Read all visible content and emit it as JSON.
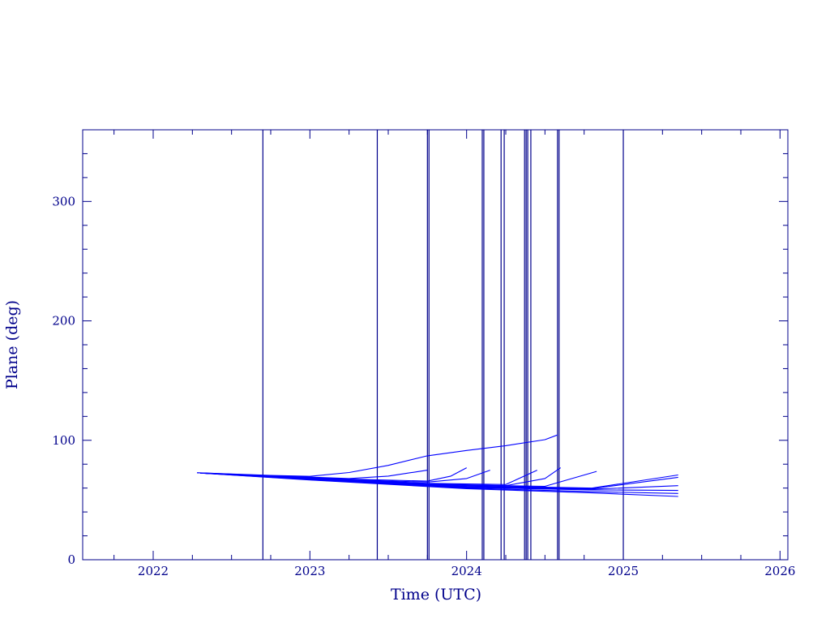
{
  "chart_data": {
    "type": "line",
    "title": "",
    "xlabel": "Time (UTC)",
    "ylabel": "Plane (deg)",
    "xlim": [
      2021.55,
      2026.05
    ],
    "ylim": [
      0,
      360
    ],
    "x_ticks": [
      2022,
      2023,
      2024,
      2025,
      2026
    ],
    "x_tick_labels": [
      "2022",
      "2023",
      "2024",
      "2025",
      "2026"
    ],
    "y_ticks": [
      0,
      100,
      200,
      300
    ],
    "y_tick_labels": [
      "0",
      "100",
      "200",
      "300"
    ],
    "grid": false,
    "colors": {
      "axis": "#00008b",
      "lines": "#0000ff",
      "markers": "#00008b"
    },
    "vertical_markers": [
      2022.7,
      2023.43,
      2023.75,
      2023.76,
      2024.1,
      2024.11,
      2024.22,
      2024.24,
      2024.37,
      2024.38,
      2024.39,
      2024.41,
      2024.58,
      2024.59,
      2025.0
    ],
    "series": [
      {
        "x": [
          2022.28,
          2022.5,
          2022.75,
          2023.0,
          2023.25,
          2023.5,
          2023.75,
          2024.0,
          2024.25,
          2024.5,
          2024.58
        ],
        "y": [
          72.8,
          71.8,
          70.6,
          69.8,
          73.0,
          79.0,
          87.0,
          91.5,
          95.5,
          100.5,
          104.5
        ]
      },
      {
        "x": [
          2022.28,
          2022.75,
          2023.25,
          2023.5,
          2023.75
        ],
        "y": [
          72.8,
          70.4,
          68.0,
          70.0,
          75.0
        ]
      },
      {
        "x": [
          2022.3,
          2022.75,
          2023.25,
          2023.75,
          2023.9,
          2024.0
        ],
        "y": [
          72.5,
          70.2,
          67.5,
          65.8,
          70.0,
          77.0
        ]
      },
      {
        "x": [
          2022.3,
          2022.75,
          2023.25,
          2023.75,
          2024.0,
          2024.15
        ],
        "y": [
          72.5,
          70.0,
          67.0,
          65.0,
          68.0,
          75.0
        ]
      },
      {
        "x": [
          2022.3,
          2023.0,
          2023.75,
          2024.25,
          2024.45
        ],
        "y": [
          72.6,
          68.5,
          64.0,
          63.0,
          75.0
        ]
      },
      {
        "x": [
          2022.3,
          2023.0,
          2023.75,
          2024.25,
          2024.5,
          2024.6
        ],
        "y": [
          72.6,
          68.2,
          63.5,
          62.0,
          68.0,
          77.0
        ]
      },
      {
        "x": [
          2022.3,
          2023.0,
          2023.75,
          2024.5,
          2024.83
        ],
        "y": [
          72.6,
          68.0,
          63.0,
          61.5,
          74.0
        ]
      },
      {
        "x": [
          2022.3,
          2023.0,
          2024.0,
          2024.8,
          2025.35
        ],
        "y": [
          72.6,
          68.0,
          62.0,
          60.0,
          71.0
        ]
      },
      {
        "x": [
          2022.3,
          2023.0,
          2024.0,
          2024.8,
          2025.35
        ],
        "y": [
          72.6,
          67.8,
          61.5,
          59.5,
          69.0
        ]
      },
      {
        "x": [
          2022.3,
          2023.0,
          2024.0,
          2024.8,
          2025.35
        ],
        "y": [
          72.6,
          67.5,
          61.0,
          59.0,
          62.0
        ]
      },
      {
        "x": [
          2022.3,
          2023.0,
          2024.0,
          2024.8,
          2025.35
        ],
        "y": [
          72.6,
          67.3,
          60.5,
          58.5,
          58.0
        ]
      },
      {
        "x": [
          2022.3,
          2023.0,
          2024.0,
          2024.8,
          2025.35
        ],
        "y": [
          72.6,
          67.0,
          60.0,
          57.0,
          55.5
        ]
      },
      {
        "x": [
          2022.3,
          2023.0,
          2024.0,
          2024.8,
          2025.35
        ],
        "y": [
          72.6,
          66.8,
          59.5,
          56.0,
          53.0
        ]
      }
    ]
  }
}
